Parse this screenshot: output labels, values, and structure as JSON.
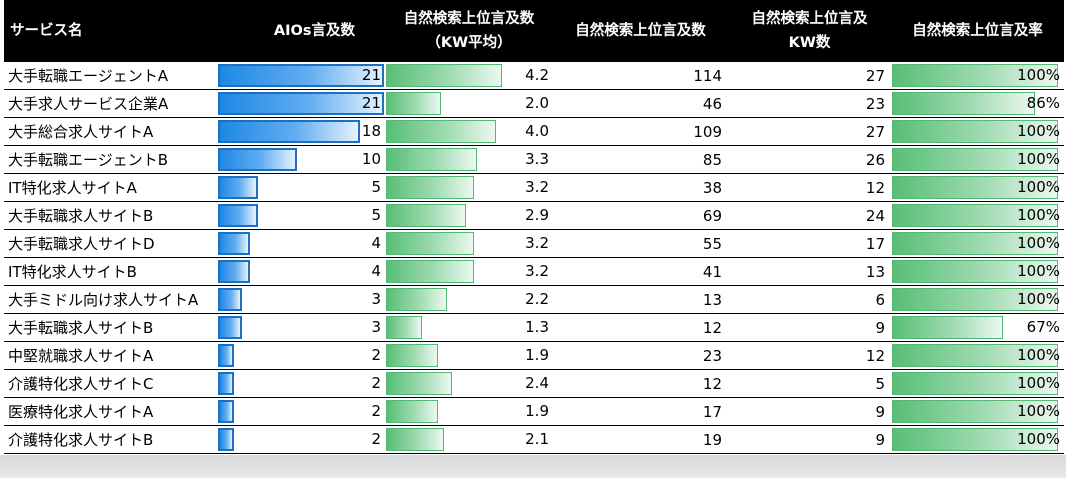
{
  "columns": {
    "service": "サービス名",
    "aios": "AIOs言及数",
    "avg_line1": "自然検索上位言及数",
    "avg_line2": "（KW平均）",
    "count": "自然検索上位言及数",
    "kw_line1": "自然検索上位言及",
    "kw_line2": "KW数",
    "rate": "自然検索上位言及率"
  },
  "scale": {
    "aios_max": 21,
    "avg_max": 4.2,
    "rate_max": 100
  },
  "colors": {
    "aios_bar": "#1e88e5",
    "green_bar": "#58be77",
    "header_bg": "#000000"
  },
  "rows": [
    {
      "name": "大手転職エージェントA",
      "aios": "21",
      "avg": "4.2",
      "count": "114",
      "kw": "27",
      "rate": "100%",
      "rate_v": 100
    },
    {
      "name": "大手求人サービス企業A",
      "aios": "21",
      "avg": "2.0",
      "count": "46",
      "kw": "23",
      "rate": "86%",
      "rate_v": 86
    },
    {
      "name": "大手総合求人サイトA",
      "aios": "18",
      "avg": "4.0",
      "count": "109",
      "kw": "27",
      "rate": "100%",
      "rate_v": 100
    },
    {
      "name": "大手転職エージェントB",
      "aios": "10",
      "avg": "3.3",
      "count": "85",
      "kw": "26",
      "rate": "100%",
      "rate_v": 100
    },
    {
      "name": "IT特化求人サイトA",
      "aios": "5",
      "avg": "3.2",
      "count": "38",
      "kw": "12",
      "rate": "100%",
      "rate_v": 100
    },
    {
      "name": "大手転職求人サイトB",
      "aios": "5",
      "avg": "2.9",
      "count": "69",
      "kw": "24",
      "rate": "100%",
      "rate_v": 100
    },
    {
      "name": "大手転職求人サイトD",
      "aios": "4",
      "avg": "3.2",
      "count": "55",
      "kw": "17",
      "rate": "100%",
      "rate_v": 100
    },
    {
      "name": "IT特化求人サイトB",
      "aios": "4",
      "avg": "3.2",
      "count": "41",
      "kw": "13",
      "rate": "100%",
      "rate_v": 100
    },
    {
      "name": "大手ミドル向け求人サイトA",
      "aios": "3",
      "avg": "2.2",
      "count": "13",
      "kw": "6",
      "rate": "100%",
      "rate_v": 100
    },
    {
      "name": "大手転職求人サイトB",
      "aios": "3",
      "avg": "1.3",
      "count": "12",
      "kw": "9",
      "rate": "67%",
      "rate_v": 67
    },
    {
      "name": "中堅就職求人サイトA",
      "aios": "2",
      "avg": "1.9",
      "count": "23",
      "kw": "12",
      "rate": "100%",
      "rate_v": 100
    },
    {
      "name": "介護特化求人サイトC",
      "aios": "2",
      "avg": "2.4",
      "count": "12",
      "kw": "5",
      "rate": "100%",
      "rate_v": 100
    },
    {
      "name": "医療特化求人サイトA",
      "aios": "2",
      "avg": "1.9",
      "count": "17",
      "kw": "9",
      "rate": "100%",
      "rate_v": 100
    },
    {
      "name": "介護特化求人サイトB",
      "aios": "2",
      "avg": "2.1",
      "count": "19",
      "kw": "9",
      "rate": "100%",
      "rate_v": 100
    }
  ]
}
